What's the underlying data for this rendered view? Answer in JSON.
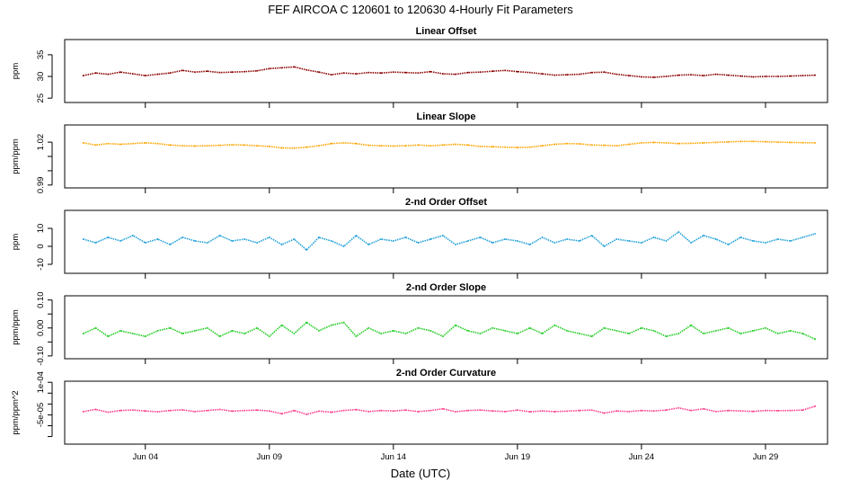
{
  "figure": {
    "title": "FEF   AIRCOA C   120601 to 120630   4-Hourly Fit Parameters",
    "xlabel": "Date (UTC)",
    "x_tick_labels": [
      "Jun 04",
      "Jun 09",
      "Jun 14",
      "Jun 19",
      "Jun 24",
      "Jun 29"
    ]
  },
  "chart_data": [
    {
      "type": "line",
      "title": "Linear Offset",
      "ylabel": "ppm",
      "color": "#8b0000",
      "ylim": [
        24,
        38.5
      ],
      "yticks": [
        25,
        30,
        35
      ],
      "ytick_labels": [
        "25",
        "30",
        "35"
      ],
      "xlim": [
        0.75,
        31.5
      ],
      "x": [
        1.5,
        2,
        2.5,
        3,
        3.5,
        4,
        4.5,
        5,
        5.5,
        6,
        6.5,
        7,
        7.5,
        8,
        8.5,
        9,
        9.5,
        10,
        10.5,
        11,
        11.5,
        12,
        12.5,
        13,
        13.5,
        14,
        14.5,
        15,
        15.5,
        16,
        16.5,
        17,
        17.5,
        18,
        18.5,
        19,
        19.5,
        20,
        20.5,
        21,
        21.5,
        22,
        22.5,
        23,
        23.5,
        24,
        24.5,
        25,
        25.5,
        26,
        26.5,
        27,
        27.5,
        28,
        28.5,
        29,
        29.5,
        30,
        30.5,
        31
      ],
      "y": [
        30.2,
        30.8,
        30.5,
        31.0,
        30.6,
        30.2,
        30.5,
        30.8,
        31.4,
        31.0,
        31.2,
        30.9,
        31.0,
        31.1,
        31.3,
        31.8,
        32.0,
        32.2,
        31.5,
        31.0,
        30.4,
        30.8,
        30.6,
        30.9,
        30.8,
        31.0,
        30.9,
        30.8,
        31.1,
        30.6,
        30.5,
        30.9,
        31.0,
        31.2,
        31.4,
        31.1,
        30.9,
        30.6,
        30.3,
        30.4,
        30.5,
        30.9,
        31.0,
        30.5,
        30.2,
        29.9,
        29.8,
        30.0,
        30.3,
        30.4,
        30.2,
        30.5,
        30.3,
        30.1,
        29.9,
        30.0,
        30.0,
        30.1,
        30.2,
        30.3
      ]
    },
    {
      "type": "line",
      "title": "Linear Slope",
      "ylabel": "ppm/ppm",
      "color": "#ffa500",
      "ylim": [
        0.988,
        1.032
      ],
      "yticks": [
        0.99,
        1.0,
        1.01,
        1.02
      ],
      "ytick_labels": [
        "0.99",
        "",
        "",
        "1.02"
      ],
      "xlim": [
        0.75,
        31.5
      ],
      "x": [
        1.5,
        2,
        2.5,
        3,
        3.5,
        4,
        4.5,
        5,
        5.5,
        6,
        6.5,
        7,
        7.5,
        8,
        8.5,
        9,
        9.5,
        10,
        10.5,
        11,
        11.5,
        12,
        12.5,
        13,
        13.5,
        14,
        14.5,
        15,
        15.5,
        16,
        16.5,
        17,
        17.5,
        18,
        18.5,
        19,
        19.5,
        20,
        20.5,
        21,
        21.5,
        22,
        22.5,
        23,
        23.5,
        24,
        24.5,
        25,
        25.5,
        26,
        26.5,
        27,
        27.5,
        28,
        28.5,
        29,
        29.5,
        30,
        30.5,
        31
      ],
      "y": [
        1.0195,
        1.018,
        1.019,
        1.0185,
        1.019,
        1.0195,
        1.019,
        1.018,
        1.0175,
        1.0172,
        1.0175,
        1.0178,
        1.0182,
        1.018,
        1.0175,
        1.017,
        1.016,
        1.0158,
        1.0165,
        1.0175,
        1.019,
        1.0195,
        1.019,
        1.0178,
        1.0175,
        1.0172,
        1.0175,
        1.018,
        1.0175,
        1.018,
        1.0185,
        1.018,
        1.017,
        1.0168,
        1.0165,
        1.0162,
        1.0165,
        1.0175,
        1.0185,
        1.019,
        1.0188,
        1.018,
        1.0178,
        1.0175,
        1.0185,
        1.0195,
        1.0198,
        1.0195,
        1.019,
        1.0192,
        1.0195,
        1.0198,
        1.0202,
        1.0205,
        1.0205,
        1.0203,
        1.02,
        1.0198,
        1.0196,
        1.0195
      ]
    },
    {
      "type": "line",
      "title": "2-nd Order Offset",
      "ylabel": "ppm",
      "color": "#1e9fd8",
      "ylim": [
        -15,
        20
      ],
      "yticks": [
        -10,
        0,
        10
      ],
      "ytick_labels": [
        "-10",
        "0",
        "10"
      ],
      "xlim": [
        0.75,
        31.5
      ],
      "x": [
        1.5,
        2,
        2.5,
        3,
        3.5,
        4,
        4.5,
        5,
        5.5,
        6,
        6.5,
        7,
        7.5,
        8,
        8.5,
        9,
        9.5,
        10,
        10.5,
        11,
        11.5,
        12,
        12.5,
        13,
        13.5,
        14,
        14.5,
        15,
        15.5,
        16,
        16.5,
        17,
        17.5,
        18,
        18.5,
        19,
        19.5,
        20,
        20.5,
        21,
        21.5,
        22,
        22.5,
        23,
        23.5,
        24,
        24.5,
        25,
        25.5,
        26,
        26.5,
        27,
        27.5,
        28,
        28.5,
        29,
        29.5,
        30,
        30.5,
        31
      ],
      "y": [
        4,
        2,
        5,
        3,
        6,
        2,
        4,
        1,
        5,
        3,
        2,
        6,
        3,
        4,
        2,
        5,
        1,
        4,
        -2,
        5,
        3,
        0,
        6,
        1,
        4,
        3,
        5,
        2,
        4,
        6,
        1,
        3,
        5,
        2,
        4,
        3,
        1,
        5,
        2,
        4,
        3,
        6,
        0,
        4,
        3,
        2,
        5,
        3,
        8,
        2,
        6,
        4,
        1,
        5,
        3,
        2,
        4,
        3,
        5,
        7
      ]
    },
    {
      "type": "line",
      "title": "2-nd Order Slope",
      "ylabel": "ppm/ppm",
      "color": "#22cc22",
      "ylim": [
        -0.11,
        0.115
      ],
      "yticks": [
        -0.1,
        -0.05,
        0.0,
        0.05,
        0.1
      ],
      "ytick_labels": [
        "-0.10",
        "",
        "0.00",
        "",
        "0.10"
      ],
      "xlim": [
        0.75,
        31.5
      ],
      "x": [
        1.5,
        2,
        2.5,
        3,
        3.5,
        4,
        4.5,
        5,
        5.5,
        6,
        6.5,
        7,
        7.5,
        8,
        8.5,
        9,
        9.5,
        10,
        10.5,
        11,
        11.5,
        12,
        12.5,
        13,
        13.5,
        14,
        14.5,
        15,
        15.5,
        16,
        16.5,
        17,
        17.5,
        18,
        18.5,
        19,
        19.5,
        20,
        20.5,
        21,
        21.5,
        22,
        22.5,
        23,
        23.5,
        24,
        24.5,
        25,
        25.5,
        26,
        26.5,
        27,
        27.5,
        28,
        28.5,
        29,
        29.5,
        30,
        30.5,
        31
      ],
      "y": [
        -0.02,
        0.0,
        -0.03,
        -0.01,
        -0.02,
        -0.03,
        -0.01,
        0.0,
        -0.02,
        -0.01,
        0.0,
        -0.03,
        -0.01,
        -0.02,
        0.0,
        -0.03,
        0.01,
        -0.02,
        0.02,
        -0.01,
        0.01,
        0.02,
        -0.03,
        0.0,
        -0.02,
        -0.01,
        -0.02,
        0.0,
        -0.01,
        -0.03,
        0.01,
        -0.01,
        -0.02,
        0.0,
        -0.01,
        -0.02,
        0.0,
        -0.02,
        0.01,
        -0.01,
        -0.02,
        -0.03,
        0.0,
        -0.01,
        -0.02,
        0.0,
        -0.01,
        -0.03,
        -0.02,
        0.01,
        -0.02,
        -0.01,
        0.0,
        -0.02,
        -0.01,
        0.0,
        -0.02,
        -0.01,
        -0.02,
        -0.04
      ]
    },
    {
      "type": "line",
      "title": "2-nd Order Curvature",
      "ylabel": "ppm/ppm^2",
      "color": "#ff3c8c",
      "ylim": [
        -0.000185,
        0.000105
      ],
      "yticks": [
        -0.00015,
        -0.0001,
        -5e-05,
        0.0,
        5e-05,
        0.0001
      ],
      "ytick_labels": [
        "",
        "",
        "-5e-05",
        "",
        "",
        "1e-04"
      ],
      "xlim": [
        0.75,
        31.5
      ],
      "x": [
        1.5,
        2,
        2.5,
        3,
        3.5,
        4,
        4.5,
        5,
        5.5,
        6,
        6.5,
        7,
        7.5,
        8,
        8.5,
        9,
        9.5,
        10,
        10.5,
        11,
        11.5,
        12,
        12.5,
        13,
        13.5,
        14,
        14.5,
        15,
        15.5,
        16,
        16.5,
        17,
        17.5,
        18,
        18.5,
        19,
        19.5,
        20,
        20.5,
        21,
        21.5,
        22,
        22.5,
        23,
        23.5,
        24,
        24.5,
        25,
        25.5,
        26,
        26.5,
        27,
        27.5,
        28,
        28.5,
        29,
        29.5,
        30,
        30.5,
        31
      ],
      "y": [
        -3.5e-05,
        -2.5e-05,
        -3.8e-05,
        -3e-05,
        -2.8e-05,
        -3.2e-05,
        -3.6e-05,
        -3e-05,
        -2.7e-05,
        -3.5e-05,
        -3e-05,
        -2.5e-05,
        -3.3e-05,
        -3e-05,
        -2.8e-05,
        -3.2e-05,
        -4.5e-05,
        -3e-05,
        -4.8e-05,
        -3.3e-05,
        -3.8e-05,
        -3e-05,
        -2.6e-05,
        -3.5e-05,
        -3e-05,
        -3.2e-05,
        -2.8e-05,
        -3.5e-05,
        -3e-05,
        -2.2e-05,
        -3.6e-05,
        -3e-05,
        -2.8e-05,
        -3.2e-05,
        -3.5e-05,
        -2.8e-05,
        -3.6e-05,
        -3.2e-05,
        -3.5e-05,
        -3.3e-05,
        -3e-05,
        -2.8e-05,
        -4.2e-05,
        -3.2e-05,
        -3.5e-05,
        -3e-05,
        -3.2e-05,
        -2.8e-05,
        -1.8e-05,
        -3e-05,
        -2.2e-05,
        -3.5e-05,
        -3e-05,
        -3.2e-05,
        -3.4e-05,
        -3e-05,
        -3.1e-05,
        -3e-05,
        -2.8e-05,
        -1e-05
      ]
    }
  ]
}
